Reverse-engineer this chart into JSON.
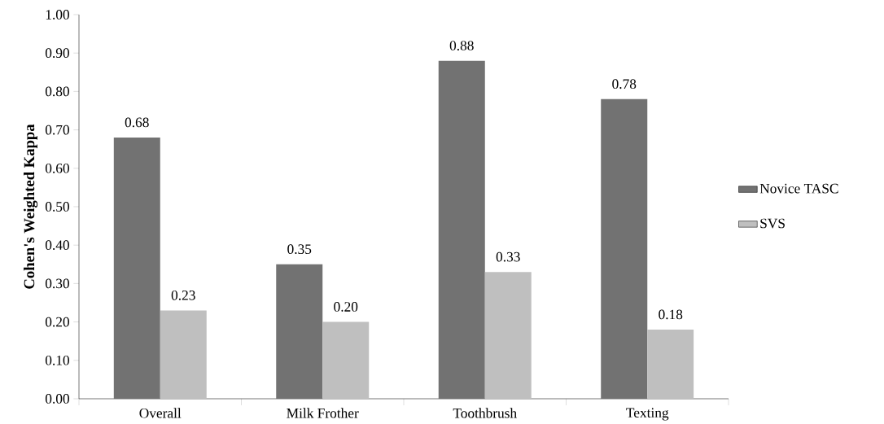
{
  "chart_data": {
    "type": "bar",
    "ylabel": "Cohen's Weighted Kappa",
    "categories": [
      "Overall",
      "Milk Frother",
      "Toothbrush",
      "Texting"
    ],
    "series": [
      {
        "name": "Novice TASC",
        "color": "#727272",
        "values": [
          0.68,
          0.35,
          0.88,
          0.78
        ],
        "value_labels": [
          "0.68",
          "0.35",
          "0.88",
          "0.78"
        ]
      },
      {
        "name": "SVS",
        "color": "#bfbfbf",
        "values": [
          0.23,
          0.2,
          0.33,
          0.18
        ],
        "value_labels": [
          "0.23",
          "0.20",
          "0.33",
          "0.18"
        ]
      }
    ],
    "ylim": [
      0,
      1
    ],
    "yticks": [
      {
        "value": 0,
        "label": "0.00"
      },
      {
        "value": 0.1,
        "label": "0.10"
      },
      {
        "value": 0.2,
        "label": "0.20"
      },
      {
        "value": 0.3,
        "label": "0.30"
      },
      {
        "value": 0.4,
        "label": "0.40"
      },
      {
        "value": 0.5,
        "label": "0.50"
      },
      {
        "value": 0.6,
        "label": "0.60"
      },
      {
        "value": 0.7,
        "label": "0.70"
      },
      {
        "value": 0.8,
        "label": "0.80"
      },
      {
        "value": 0.9,
        "label": "0.90"
      },
      {
        "value": 1,
        "label": "1.00"
      }
    ],
    "grid": false,
    "legend": "right"
  }
}
